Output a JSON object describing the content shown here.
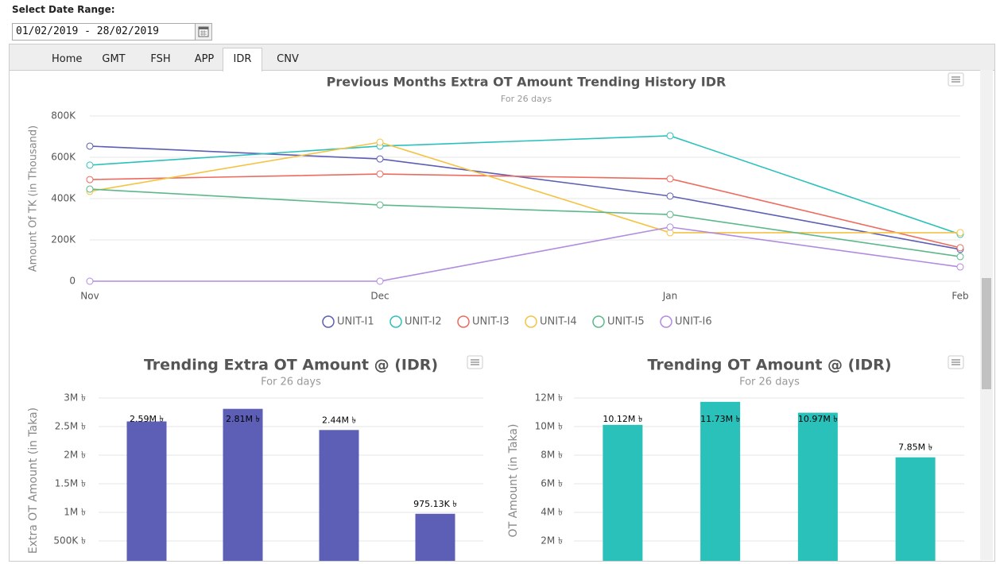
{
  "date_range": {
    "label": "Select Date Range:",
    "value": "01/02/2019 - 28/02/2019"
  },
  "tabs": [
    "Home",
    "GMT",
    "FSH",
    "APP",
    "IDR",
    "CNV"
  ],
  "active_tab": 4,
  "chart_data": [
    {
      "type": "line",
      "title": "Previous Months Extra OT Amount Trending History IDR",
      "subtitle": "For 26 days",
      "y_label": "Amount Of TK (in Thousand)",
      "categories": [
        "Nov",
        "Dec",
        "Jan",
        "Feb"
      ],
      "ylim": [
        0,
        800000
      ],
      "yticks": [
        0,
        {
          "value": 200000,
          "label": "200K"
        },
        {
          "value": 400000,
          "label": "400K"
        },
        {
          "value": 600000,
          "label": "600K"
        },
        {
          "value": 800000,
          "label": "800K"
        }
      ],
      "grid": true,
      "legend": "bottom",
      "series": [
        {
          "name": "UNIT-I1",
          "color": "#5b5eb3",
          "values": [
            654000,
            592000,
            412000,
            154000
          ]
        },
        {
          "name": "UNIT-I2",
          "color": "#2bc1bb",
          "values": [
            562000,
            654000,
            704000,
            227000
          ]
        },
        {
          "name": "UNIT-I3",
          "color": "#ed6a5e",
          "values": [
            492000,
            519000,
            496000,
            162000
          ]
        },
        {
          "name": "UNIT-I4",
          "color": "#f5c343",
          "values": [
            435000,
            673000,
            235000,
            235000
          ]
        },
        {
          "name": "UNIT-I5",
          "color": "#5cb88a",
          "values": [
            446000,
            369000,
            323000,
            119000
          ]
        },
        {
          "name": "UNIT-I6",
          "color": "#b18be0",
          "values": [
            0,
            0,
            262000,
            69000
          ]
        }
      ]
    },
    {
      "type": "bar",
      "title": "Trending Extra OT Amount @ (IDR)",
      "subtitle": "For 26 days",
      "y_label": "Extra OT Amount (in Taka)",
      "color": "#5c5fb5",
      "ylim": [
        0,
        3000000
      ],
      "yticks": [
        {
          "value": 500000,
          "label": "500K ৳"
        },
        {
          "value": 1000000,
          "label": "1M ৳"
        },
        {
          "value": 1500000,
          "label": "1.5M ৳"
        },
        {
          "value": 2000000,
          "label": "2M ৳"
        },
        {
          "value": 2500000,
          "label": "2.5M ৳"
        },
        {
          "value": 3000000,
          "label": "3M ৳"
        }
      ],
      "grid": true,
      "values": [
        2590000,
        2810000,
        2440000,
        975130
      ],
      "value_labels": [
        "2.59M ৳",
        "2.81M ৳",
        "2.44M ৳",
        "975.13K ৳"
      ]
    },
    {
      "type": "bar",
      "title": "Trending OT Amount @ (IDR)",
      "subtitle": "For 26 days",
      "y_label": "OT Amount (in Taka)",
      "color": "#2ac1bb",
      "ylim": [
        0,
        12000000
      ],
      "yticks": [
        {
          "value": 2000000,
          "label": "2M ৳"
        },
        {
          "value": 4000000,
          "label": "4M ৳"
        },
        {
          "value": 6000000,
          "label": "6M ৳"
        },
        {
          "value": 8000000,
          "label": "8M ৳"
        },
        {
          "value": 10000000,
          "label": "10M ৳"
        },
        {
          "value": 12000000,
          "label": "12M ৳"
        }
      ],
      "grid": true,
      "values": [
        10120000,
        11730000,
        10970000,
        7850000
      ],
      "value_labels": [
        "10.12M ৳",
        "11.73M ৳",
        "10.97M ৳",
        "7.85M ৳"
      ]
    }
  ]
}
